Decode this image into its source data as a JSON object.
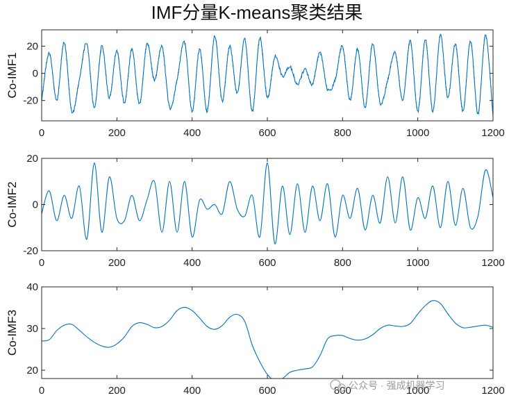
{
  "figure": {
    "title": "IMF分量K-means聚类结果",
    "watermark": "公众号 · 强成机器学习"
  },
  "colors": {
    "line": "#0072BD",
    "axes": "#262626",
    "text": "#111111"
  },
  "chart_data": [
    {
      "type": "line",
      "ylabel": "Co-IMF1",
      "xlim": [
        0,
        1200
      ],
      "ylim": [
        -35,
        32
      ],
      "xticks": [
        0,
        200,
        400,
        600,
        800,
        1000,
        1200
      ],
      "yticks": [
        -20,
        0,
        20
      ],
      "grid": false,
      "noise": 2.2,
      "series": [
        {
          "x": [
            0,
            20,
            40,
            60,
            80,
            100,
            120,
            140,
            160,
            180,
            200,
            220,
            240,
            260,
            280,
            300,
            320,
            340,
            360,
            380,
            400,
            420,
            440,
            460,
            480,
            500,
            520,
            540,
            560,
            580,
            600,
            620,
            640,
            660,
            680,
            700,
            720,
            740,
            760,
            780,
            800,
            820,
            840,
            860,
            880,
            900,
            920,
            940,
            960,
            980,
            1000,
            1020,
            1040,
            1060,
            1080,
            1100,
            1120,
            1140,
            1160,
            1180,
            1200
          ],
          "y": [
            -20,
            15,
            -20,
            23,
            -28,
            -5,
            22,
            -25,
            20,
            -18,
            17,
            -22,
            18,
            -23,
            22,
            -5,
            20,
            -25,
            -5,
            23,
            -28,
            18,
            -28,
            28,
            -20,
            20,
            -15,
            25,
            -28,
            26,
            -18,
            12,
            -2,
            5,
            -8,
            3,
            -8,
            15,
            -12,
            -5,
            20,
            -20,
            18,
            -25,
            22,
            -22,
            -5,
            15,
            -20,
            24,
            -28,
            25,
            -28,
            28,
            -18,
            22,
            -28,
            24,
            -30,
            28,
            -32
          ]
        }
      ]
    },
    {
      "type": "line",
      "ylabel": "Co-IMF2",
      "xlim": [
        0,
        1200
      ],
      "ylim": [
        -20,
        20
      ],
      "xticks": [
        0,
        200,
        400,
        600,
        800,
        1000,
        1200
      ],
      "yticks": [
        -20,
        0,
        20
      ],
      "grid": false,
      "noise": 0,
      "series": [
        {
          "x": [
            0,
            20,
            40,
            60,
            80,
            100,
            120,
            140,
            160,
            180,
            200,
            220,
            240,
            260,
            280,
            300,
            320,
            340,
            360,
            380,
            400,
            420,
            440,
            460,
            480,
            500,
            520,
            540,
            560,
            580,
            600,
            620,
            640,
            660,
            680,
            700,
            720,
            740,
            760,
            780,
            800,
            820,
            840,
            860,
            880,
            900,
            920,
            940,
            960,
            980,
            1000,
            1020,
            1040,
            1060,
            1080,
            1100,
            1120,
            1140,
            1160,
            1180,
            1200
          ],
          "y": [
            -4,
            6,
            -7,
            4,
            -6,
            8,
            -15,
            18,
            -12,
            12,
            -6,
            -7,
            4,
            -7,
            2,
            10,
            -12,
            10,
            -12,
            10,
            -14,
            2,
            -2,
            0,
            -4,
            10,
            -2,
            -5,
            4,
            -14,
            18,
            -17,
            8,
            -13,
            9,
            -12,
            8,
            -7,
            9,
            -14,
            4,
            -6,
            7,
            -11,
            4,
            -8,
            12,
            -8,
            12,
            -11,
            3,
            -6,
            8,
            -10,
            10,
            -9,
            7,
            -10,
            -5,
            15,
            3
          ]
        }
      ]
    },
    {
      "type": "line",
      "ylabel": "Co-IMF3",
      "xlim": [
        0,
        1200
      ],
      "ylim": [
        18,
        40
      ],
      "xticks": [
        0,
        200,
        400,
        600,
        800,
        1000,
        1200
      ],
      "yticks": [
        20,
        30,
        40
      ],
      "grid": false,
      "noise": 0,
      "series": [
        {
          "x": [
            0,
            20,
            40,
            60,
            80,
            100,
            120,
            140,
            160,
            180,
            200,
            220,
            240,
            260,
            280,
            300,
            320,
            340,
            360,
            380,
            400,
            420,
            440,
            460,
            480,
            500,
            520,
            540,
            560,
            580,
            600,
            620,
            640,
            660,
            680,
            700,
            720,
            740,
            760,
            780,
            800,
            820,
            840,
            860,
            880,
            900,
            920,
            940,
            960,
            980,
            1000,
            1020,
            1040,
            1060,
            1080,
            1100,
            1120,
            1140,
            1160,
            1180,
            1200
          ],
          "y": [
            27,
            27.3,
            29.5,
            30.8,
            31,
            29.6,
            28,
            26.7,
            25.8,
            25.5,
            26.3,
            28,
            30.5,
            31.4,
            31,
            30.2,
            30.5,
            32,
            34.3,
            35.1,
            34.3,
            32.5,
            30.5,
            29.8,
            30.7,
            32.7,
            33.4,
            31.7,
            26,
            22,
            19,
            17.5,
            18,
            19.5,
            20,
            20.3,
            20.8,
            23.5,
            27.5,
            28.3,
            28.3,
            27.6,
            27.2,
            27.5,
            28.5,
            30,
            30.8,
            30.6,
            30.5,
            31.2,
            33.5,
            35.5,
            36.7,
            36,
            33.5,
            31.3,
            30.2,
            30.3,
            30.6,
            30.8,
            30.3
          ]
        }
      ]
    }
  ]
}
